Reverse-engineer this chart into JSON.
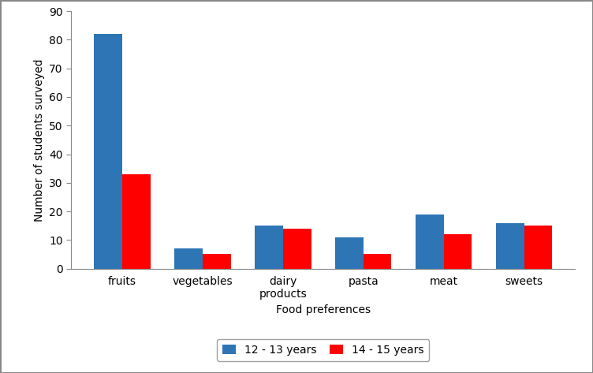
{
  "categories": [
    "fruits",
    "vegetables",
    "dairy\nproducts",
    "pasta",
    "meat",
    "sweets"
  ],
  "series": {
    "12 - 13 years": [
      82,
      7,
      15,
      11,
      19,
      16
    ],
    "14 - 15 years": [
      33,
      5,
      14,
      5,
      12,
      15
    ]
  },
  "colors": {
    "12 - 13 years": "#2E75B6",
    "14 - 15 years": "#FF0000"
  },
  "ylabel": "Number of students surveyed",
  "xlabel": "Food preferences",
  "ylim": [
    0,
    90
  ],
  "yticks": [
    0,
    10,
    20,
    30,
    40,
    50,
    60,
    70,
    80,
    90
  ],
  "bar_width": 0.35,
  "legend_labels": [
    "12 - 13 years",
    "14 - 15 years"
  ],
  "background_color": "#ffffff",
  "figure_border_color": "#888888"
}
